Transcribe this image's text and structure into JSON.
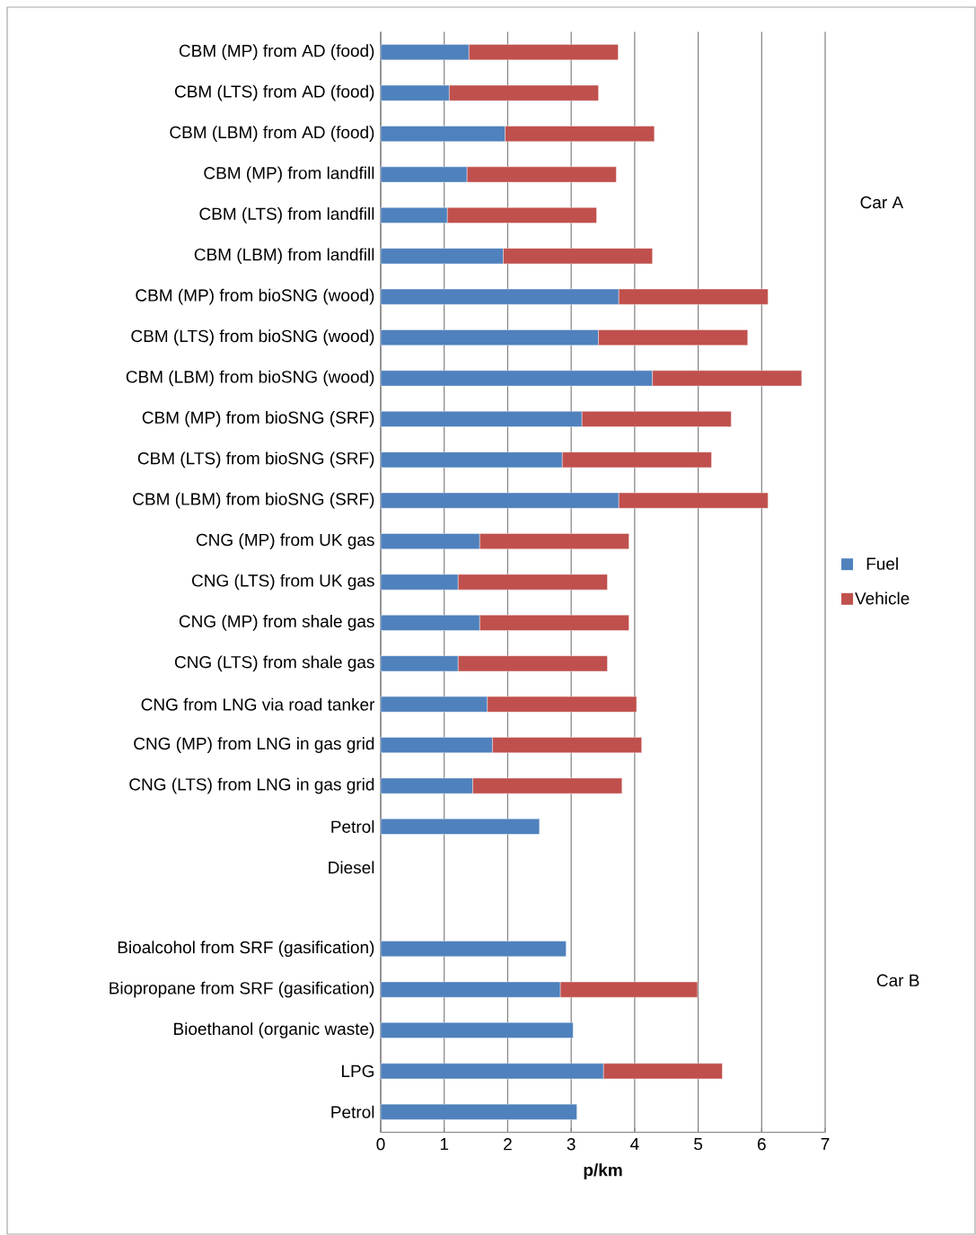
{
  "chart_data": {
    "type": "bar",
    "orientation": "horizontal",
    "stacked": true,
    "xlabel": "p/km",
    "categories": [
      "CBM (MP) from AD (food)",
      "CBM (LTS) from AD (food)",
      "CBM (LBM) from AD (food)",
      "CBM (MP) from landfill",
      "CBM (LTS) from landfill",
      "CBM (LBM) from landfill",
      "CBM (MP) from bioSNG (wood)",
      "CBM (LTS) from bioSNG (wood)",
      "CBM (LBM) from bioSNG (wood)",
      "CBM (MP) from bioSNG (SRF)",
      "CBM (LTS) from bioSNG (SRF)",
      "CBM (LBM) from bioSNG (SRF)",
      "CNG (MP) from UK gas",
      "CNG (LTS) from UK gas",
      "CNG (MP) from shale gas",
      "CNG (LTS) from shale gas",
      "CNG from LNG via road tanker",
      "CNG (MP) from LNG in gas grid",
      "CNG (LTS) from LNG in gas grid",
      "Petrol",
      "Diesel",
      null,
      "Bioalcohol from SRF (gasification)",
      "Biopropane from SRF (gasification)",
      "Bioethanol (organic waste)",
      "LPG",
      "Petrol"
    ],
    "series": [
      {
        "name": "Fuel",
        "color": "#4f81bd",
        "values": [
          1.39,
          1.08,
          1.96,
          1.36,
          1.05,
          1.93,
          3.75,
          3.43,
          4.28,
          3.17,
          2.86,
          3.75,
          1.56,
          1.22,
          1.56,
          1.22,
          1.68,
          1.76,
          1.45,
          2.5,
          null,
          null,
          2.92,
          2.83,
          3.03,
          3.51,
          3.09
        ]
      },
      {
        "name": "Vehicle",
        "color": "#c0504d",
        "values": [
          2.35,
          2.35,
          2.35,
          2.35,
          2.35,
          2.35,
          2.35,
          2.35,
          2.35,
          2.35,
          2.35,
          2.35,
          2.35,
          2.35,
          2.35,
          2.35,
          2.35,
          2.35,
          2.35,
          null,
          null,
          null,
          null,
          2.16,
          null,
          1.87,
          null
        ]
      }
    ],
    "xlim": [
      0,
      7
    ],
    "xticks": [
      0,
      1,
      2,
      3,
      4,
      5,
      6,
      7
    ],
    "grid": "x",
    "legend": "right",
    "annotations": [
      "Car A",
      "Car B"
    ]
  }
}
